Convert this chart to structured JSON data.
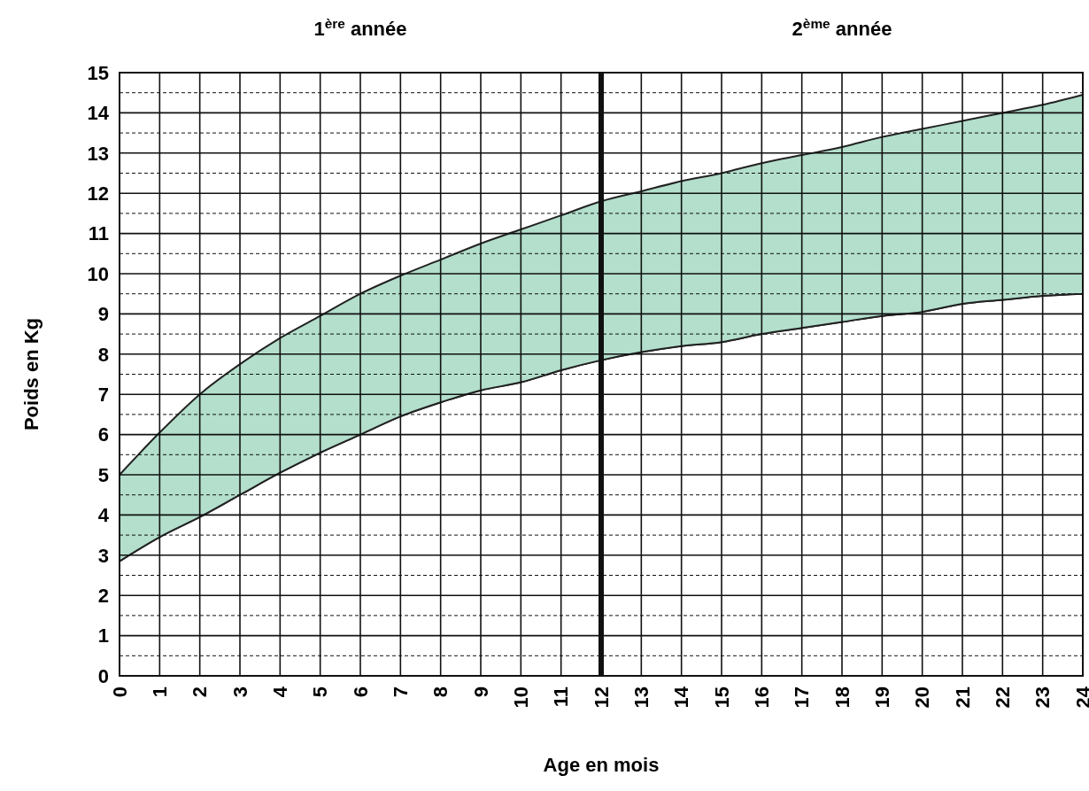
{
  "chart_data": {
    "type": "area",
    "xlabel": "Age en mois",
    "ylabel": "Poids en Kg",
    "annotations": [
      "1$^{ère}$ année",
      "2$^{ème}$ année"
    ],
    "x": [
      0,
      1,
      2,
      3,
      4,
      5,
      6,
      7,
      8,
      9,
      10,
      11,
      12,
      13,
      14,
      15,
      16,
      17,
      18,
      19,
      20,
      21,
      22,
      23,
      24
    ],
    "stacked": true,
    "series": [
      {
        "color": "#ffffff",
        "values": [
          2.85,
          3.45,
          3.95,
          4.5,
          5.05,
          5.55,
          6.0,
          6.45,
          6.8,
          7.1,
          7.3,
          7.6,
          7.85,
          8.05,
          8.2,
          8.3,
          8.5,
          8.65,
          8.8,
          8.95,
          9.05,
          9.25,
          9.35,
          9.45,
          9.5
        ]
      },
      {
        "color": "#b3dfcc",
        "values": [
          2.15,
          2.6,
          3.05,
          3.25,
          3.35,
          3.4,
          3.5,
          3.5,
          3.55,
          3.65,
          3.8,
          3.85,
          3.95,
          4.0,
          4.1,
          4.2,
          4.25,
          4.3,
          4.35,
          4.45,
          4.55,
          4.55,
          4.65,
          4.75,
          4.95
        ]
      }
    ],
    "ref_lines": [
      {
        "axis": "x",
        "value": 12,
        "color": "#111111"
      }
    ],
    "xlim": [
      0,
      24
    ],
    "xticks": [
      0,
      1,
      2,
      3,
      4,
      5,
      6,
      7,
      8,
      9,
      10,
      11,
      12,
      13,
      14,
      15,
      16,
      17,
      18,
      19,
      20,
      21,
      22,
      23,
      24
    ],
    "ylim": [
      0,
      15
    ],
    "yticks": [
      0,
      {
        "value": 0.5,
        "label": null
      },
      1,
      {
        "value": 1.5,
        "label": null
      },
      2,
      {
        "value": 2.5,
        "label": null
      },
      3,
      {
        "value": 3.5,
        "label": null
      },
      4,
      {
        "value": 4.5,
        "label": null
      },
      5,
      {
        "value": 5.5,
        "label": null
      },
      6,
      {
        "value": 6.5,
        "label": null
      },
      7,
      {
        "value": 7.5,
        "label": null
      },
      8,
      {
        "value": 8.5,
        "label": null
      },
      9,
      {
        "value": 9.5,
        "label": null
      },
      10,
      {
        "value": 10.5,
        "label": null
      },
      11,
      {
        "value": 11.5,
        "label": null
      },
      12,
      {
        "value": 12.5,
        "label": null
      },
      13,
      {
        "value": 13.5,
        "label": null
      },
      14,
      {
        "value": 14.5,
        "label": null
      },
      15
    ],
    "grid": true
  }
}
